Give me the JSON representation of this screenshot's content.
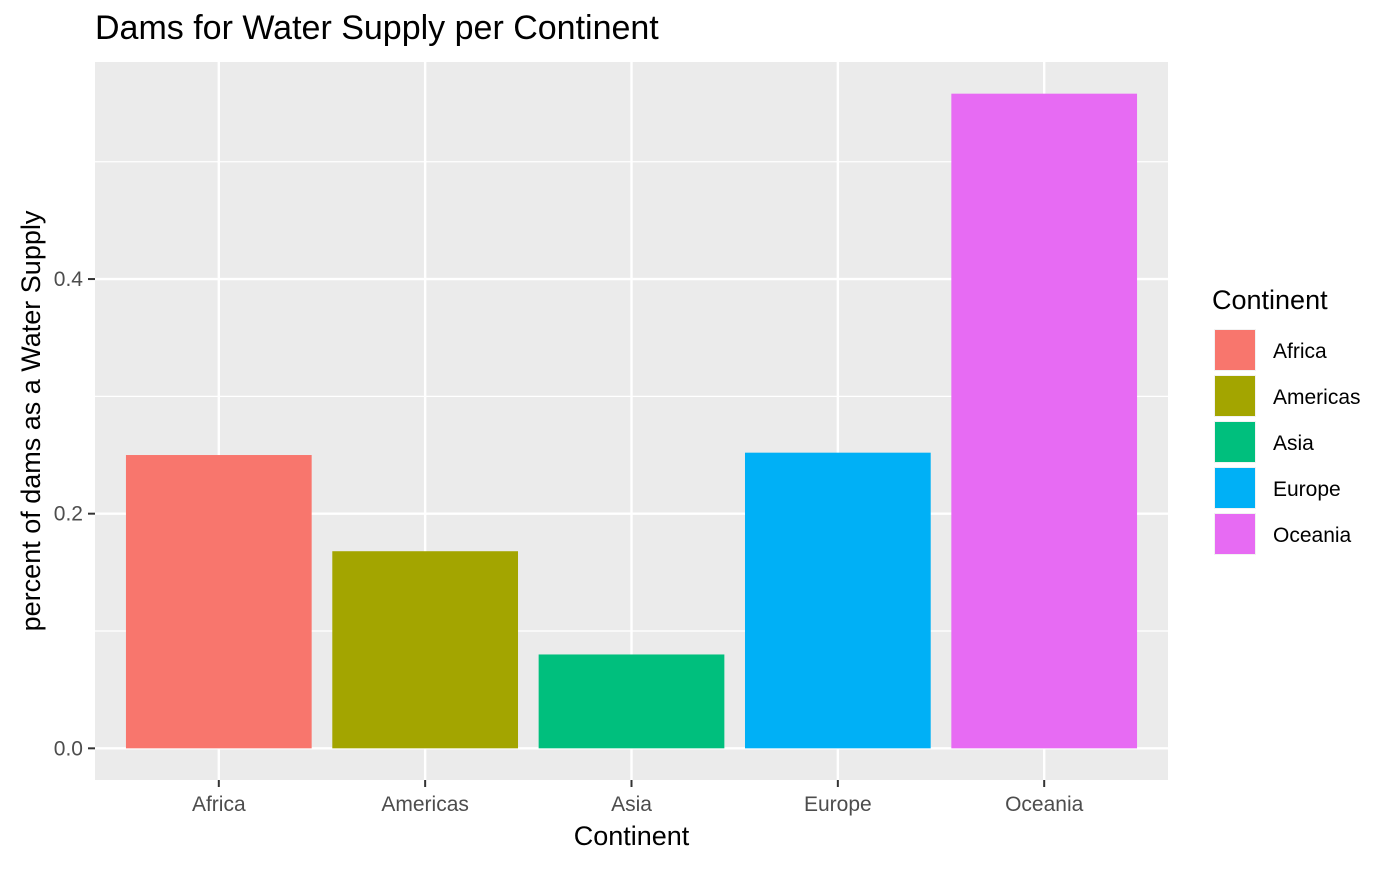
{
  "chart_data": {
    "type": "bar",
    "title": "Dams for Water Supply per Continent",
    "xlabel": "Continent",
    "ylabel": "percent of dams as a Water Supply",
    "categories": [
      "Africa",
      "Americas",
      "Asia",
      "Europe",
      "Oceania"
    ],
    "values": [
      0.25,
      0.168,
      0.08,
      0.252,
      0.558
    ],
    "colors": [
      "#F8766D",
      "#A3A500",
      "#00BF7D",
      "#00B0F6",
      "#E76BF3"
    ],
    "ylim": [
      -0.027,
      0.585
    ],
    "yticks": [
      0.0,
      0.2,
      0.4
    ],
    "ytick_labels": [
      "0.0",
      "0.2",
      "0.4"
    ],
    "grid": true,
    "panel_background": "#EBEBEB",
    "grid_color": "#FFFFFF",
    "legend": {
      "title": "Continent",
      "position": "right",
      "entries": [
        "Africa",
        "Americas",
        "Asia",
        "Europe",
        "Oceania"
      ]
    }
  }
}
